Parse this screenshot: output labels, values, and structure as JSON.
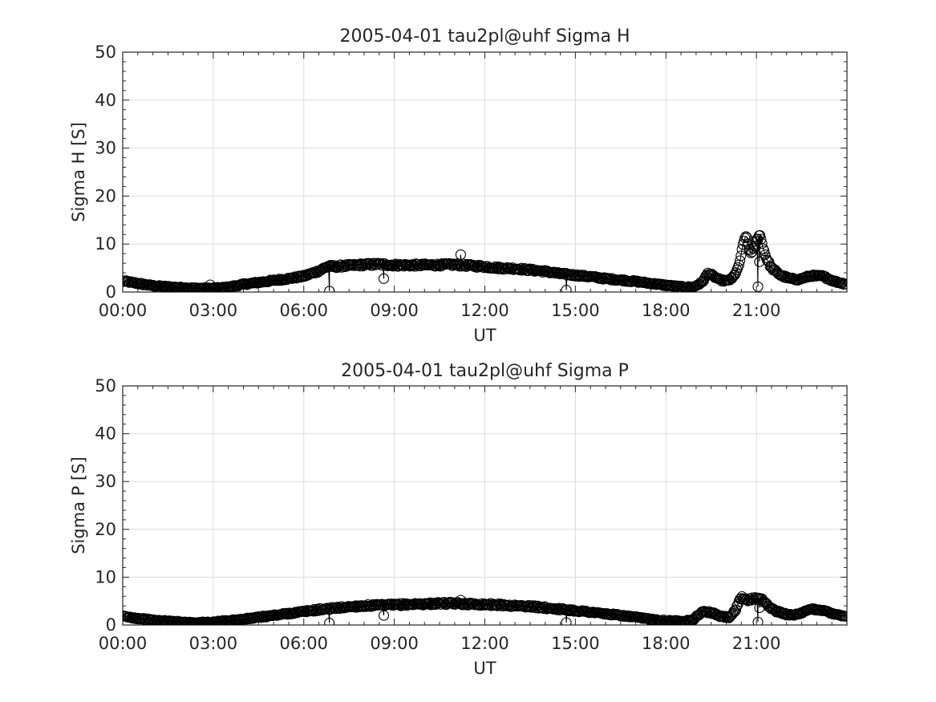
{
  "chart_data": [
    {
      "type": "scatter",
      "title": "2005-04-01  tau2pl@uhf Sigma H",
      "xlabel": "UT",
      "ylabel": "Sigma H [S]",
      "x_unit": "hours UT",
      "xlim": [
        0,
        24
      ],
      "ylim": [
        0,
        50
      ],
      "x_ticks": [
        0,
        3,
        6,
        9,
        12,
        15,
        18,
        21
      ],
      "x_tick_labels": [
        "00:00",
        "03:00",
        "06:00",
        "09:00",
        "12:00",
        "15:00",
        "18:00",
        "21:00"
      ],
      "y_ticks": [
        0,
        10,
        20,
        30,
        40,
        50
      ],
      "y_tick_labels": [
        "0",
        "10",
        "20",
        "30",
        "40",
        "50"
      ],
      "grid": true,
      "marker": "open-circle",
      "color": "#000000",
      "profile": [
        [
          0,
          2.3
        ],
        [
          0.5,
          1.8
        ],
        [
          1,
          1.3
        ],
        [
          1.5,
          1.1
        ],
        [
          2,
          0.9
        ],
        [
          2.5,
          0.8
        ],
        [
          3,
          0.8
        ],
        [
          3.5,
          1.0
        ],
        [
          4,
          1.6
        ],
        [
          4.5,
          2.0
        ],
        [
          5,
          2.4
        ],
        [
          5.5,
          2.8
        ],
        [
          6,
          3.3
        ],
        [
          6.5,
          4.4
        ],
        [
          6.8,
          5.4
        ],
        [
          7,
          5.3
        ],
        [
          7.5,
          5.5
        ],
        [
          8,
          5.7
        ],
        [
          8.5,
          5.8
        ],
        [
          9,
          5.6
        ],
        [
          10,
          5.6
        ],
        [
          11,
          5.7
        ],
        [
          12,
          5.3
        ],
        [
          12.5,
          5.0
        ],
        [
          13,
          4.9
        ],
        [
          13.5,
          4.6
        ],
        [
          14,
          4.3
        ],
        [
          14.5,
          3.8
        ],
        [
          15,
          3.5
        ],
        [
          15.5,
          3.2
        ],
        [
          16,
          2.8
        ],
        [
          16.5,
          2.5
        ],
        [
          17,
          2.2
        ],
        [
          17.5,
          1.8
        ],
        [
          18,
          1.4
        ],
        [
          18.5,
          1.1
        ],
        [
          18.9,
          1.0
        ],
        [
          19.2,
          2.0
        ],
        [
          19.4,
          4.0
        ],
        [
          19.6,
          3.2
        ],
        [
          19.8,
          2.5
        ],
        [
          20.0,
          2.3
        ],
        [
          20.2,
          2.8
        ],
        [
          20.4,
          5.0
        ],
        [
          20.55,
          9.5
        ],
        [
          20.65,
          12.0
        ],
        [
          20.75,
          9.0
        ],
        [
          20.85,
          8.2
        ],
        [
          21.0,
          10.5
        ],
        [
          21.1,
          12.2
        ],
        [
          21.3,
          7.5
        ],
        [
          21.5,
          5.0
        ],
        [
          21.8,
          3.5
        ],
        [
          22.1,
          2.8
        ],
        [
          22.4,
          2.6
        ],
        [
          22.8,
          3.4
        ],
        [
          23.2,
          3.3
        ],
        [
          23.6,
          2.2
        ],
        [
          24,
          1.6
        ]
      ],
      "outliers": [
        [
          2.9,
          1.5
        ],
        [
          6.85,
          0.2
        ],
        [
          8.65,
          2.8
        ],
        [
          11.2,
          7.8
        ],
        [
          14.7,
          0.4
        ],
        [
          21.05,
          1.1
        ],
        [
          21.1,
          6.3
        ]
      ]
    },
    {
      "type": "scatter",
      "title": "2005-04-01  tau2pl@uhf Sigma P",
      "xlabel": "UT",
      "ylabel": "Sigma P [S]",
      "x_unit": "hours UT",
      "xlim": [
        0,
        24
      ],
      "ylim": [
        0,
        50
      ],
      "x_ticks": [
        0,
        3,
        6,
        9,
        12,
        15,
        18,
        21
      ],
      "x_tick_labels": [
        "00:00",
        "03:00",
        "06:00",
        "09:00",
        "12:00",
        "15:00",
        "18:00",
        "21:00"
      ],
      "y_ticks": [
        0,
        10,
        20,
        30,
        40,
        50
      ],
      "y_tick_labels": [
        "0",
        "10",
        "20",
        "30",
        "40",
        "50"
      ],
      "grid": true,
      "marker": "open-circle",
      "color": "#000000",
      "profile": [
        [
          0,
          1.8
        ],
        [
          0.5,
          1.4
        ],
        [
          1,
          1.0
        ],
        [
          1.5,
          0.8
        ],
        [
          2,
          0.6
        ],
        [
          2.5,
          0.5
        ],
        [
          3,
          0.6
        ],
        [
          3.5,
          0.9
        ],
        [
          4,
          1.2
        ],
        [
          4.5,
          1.6
        ],
        [
          5,
          2.0
        ],
        [
          5.5,
          2.4
        ],
        [
          6,
          2.8
        ],
        [
          6.5,
          3.2
        ],
        [
          7,
          3.5
        ],
        [
          7.5,
          3.8
        ],
        [
          8,
          4.0
        ],
        [
          8.5,
          4.1
        ],
        [
          9,
          4.2
        ],
        [
          9.5,
          4.3
        ],
        [
          10,
          4.4
        ],
        [
          10.5,
          4.5
        ],
        [
          11,
          4.5
        ],
        [
          11.5,
          4.4
        ],
        [
          12,
          4.3
        ],
        [
          12.5,
          4.2
        ],
        [
          13,
          4.0
        ],
        [
          13.5,
          3.9
        ],
        [
          14,
          3.6
        ],
        [
          14.5,
          3.3
        ],
        [
          15,
          3.0
        ],
        [
          15.5,
          2.7
        ],
        [
          16,
          2.3
        ],
        [
          16.5,
          2.0
        ],
        [
          17,
          1.6
        ],
        [
          17.5,
          1.2
        ],
        [
          18,
          0.9
        ],
        [
          18.5,
          0.8
        ],
        [
          18.9,
          1.1
        ],
        [
          19.2,
          2.8
        ],
        [
          19.5,
          2.6
        ],
        [
          19.8,
          1.8
        ],
        [
          20.1,
          1.6
        ],
        [
          20.3,
          3.0
        ],
        [
          20.5,
          5.8
        ],
        [
          20.7,
          5.2
        ],
        [
          20.9,
          5.5
        ],
        [
          21.1,
          5.8
        ],
        [
          21.3,
          4.5
        ],
        [
          21.6,
          3.0
        ],
        [
          22.0,
          2.2
        ],
        [
          22.4,
          2.2
        ],
        [
          22.8,
          3.3
        ],
        [
          23.1,
          3.2
        ],
        [
          23.5,
          2.5
        ],
        [
          24,
          1.7
        ]
      ],
      "outliers": [
        [
          6.85,
          0.4
        ],
        [
          8.65,
          2.0
        ],
        [
          11.2,
          5.2
        ],
        [
          14.7,
          0.5
        ],
        [
          21.05,
          0.6
        ],
        [
          21.1,
          3.6
        ]
      ]
    }
  ]
}
